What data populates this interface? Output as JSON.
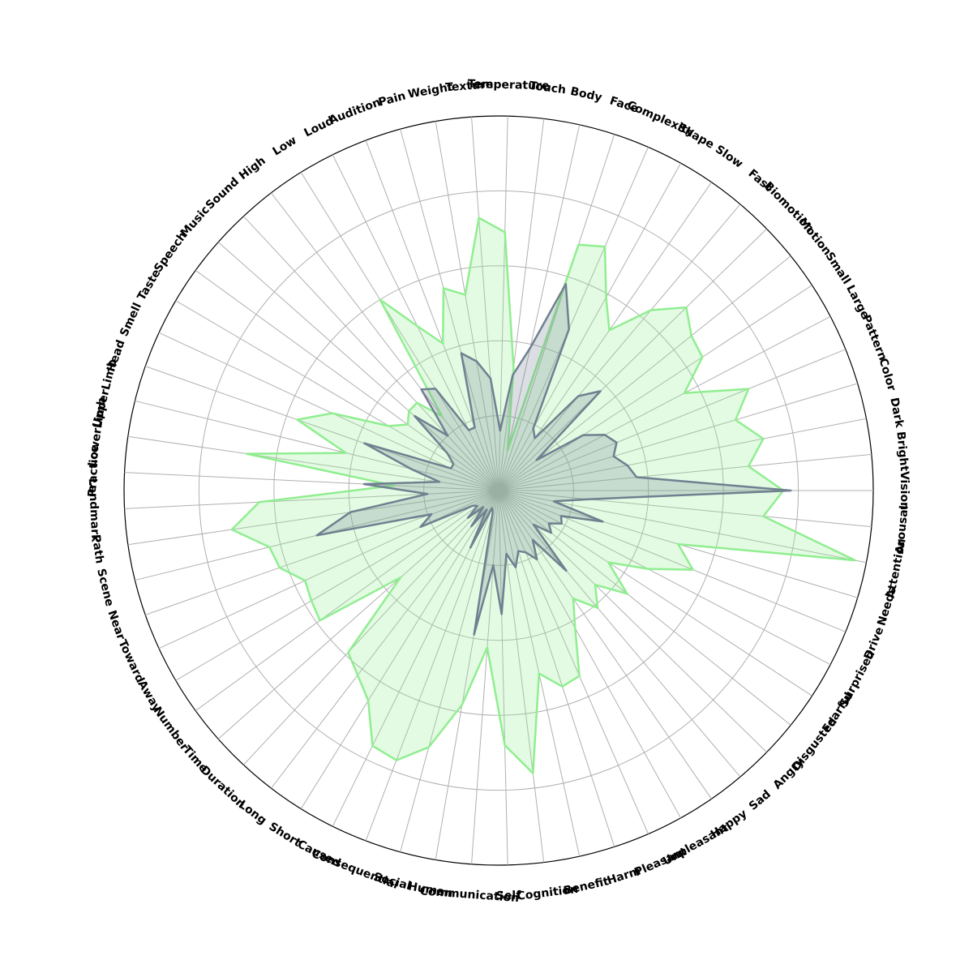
{
  "chart_data": {
    "type": "radar",
    "title": "",
    "grid": true,
    "rlim": [
      0,
      1
    ],
    "rings": [
      0.2,
      0.4,
      0.6,
      0.8,
      1.0
    ],
    "colors": {
      "series_a_line": "#90EE90",
      "series_a_fill": "#90EE90",
      "series_b_line": "#708090",
      "series_b_fill": "#708090",
      "grid": "#b0b0b0",
      "outer_circle": "#000000"
    },
    "categories": [
      "Vision",
      "Bright",
      "Dark",
      "Color",
      "Pattern",
      "Large",
      "Small",
      "Motion",
      "Biomotion",
      "Fast",
      "Slow",
      "Shape",
      "Complexity",
      "Face",
      "Body",
      "Touch",
      "Temperature",
      "Texture",
      "Weight",
      "Pain",
      "Audition",
      "Loud",
      "Low",
      "High",
      "Sound",
      "Music",
      "Speech",
      "Taste",
      "Smell",
      "Head",
      "UpperLimb",
      "LowerLimb",
      "Practice",
      "Landmark",
      "Path",
      "Scene",
      "Near",
      "Toward",
      "Away",
      "Number",
      "Time",
      "Duration",
      "Long",
      "Short",
      "Caused",
      "Consequential",
      "Social",
      "Human",
      "Communication",
      "Self",
      "Cognition",
      "Benefit",
      "Harm",
      "Pleasant",
      "Unpleasant",
      "Happy",
      "Sad",
      "Angry",
      "Disgusted",
      "Fearful",
      "Surprised",
      "Drive",
      "Needs",
      "Attention",
      "Arousal"
    ],
    "series": [
      {
        "values": [
          0.76,
          0.67,
          0.72,
          0.66,
          0.72,
          0.56,
          0.65,
          0.66,
          0.7,
          0.63,
          0.52,
          0.59,
          0.71,
          0.69,
          0.11,
          0.33,
          0.69,
          0.73,
          0.53,
          0.56,
          0.42,
          0.49,
          0.6,
          0.25,
          0.32,
          0.32,
          0.3,
          0.34,
          0.49,
          0.57,
          0.42,
          0.68,
          0.28,
          0.64,
          0.72,
          0.63,
          0.62,
          0.57,
          0.58,
          0.59,
          0.35,
          0.59,
          0.62,
          0.66,
          0.76,
          0.77,
          0.71,
          0.58,
          0.42,
          0.68,
          0.76,
          0.5,
          0.55,
          0.54,
          0.42,
          0.35,
          0.41,
          0.36,
          0.44,
          0.35,
          0.45,
          0.56,
          0.5,
          0.97,
          0.71
        ]
      },
      {
        "values": [
          0.78,
          0.37,
          0.35,
          0.32,
          0.34,
          0.32,
          0.27,
          0.13,
          0.38,
          0.33,
          0.17,
          0.19,
          0.47,
          0.58,
          0.39,
          0.31,
          0.16,
          0.3,
          0.35,
          0.38,
          0.18,
          0.18,
          0.32,
          0.34,
          0.2,
          0.3,
          0.17,
          0.14,
          0.14,
          0.38,
          0.24,
          0.16,
          0.36,
          0.19,
          0.4,
          0.5,
          0.19,
          0.23,
          0.08,
          0.07,
          0.11,
          0.06,
          0.12,
          0.06,
          0.17,
          0.05,
          0.06,
          0.39,
          0.2,
          0.33,
          0.17,
          0.21,
          0.17,
          0.18,
          0.21,
          0.16,
          0.28,
          0.13,
          0.18,
          0.16,
          0.19,
          0.18,
          0.29,
          0.15,
          0.24
        ]
      }
    ]
  }
}
